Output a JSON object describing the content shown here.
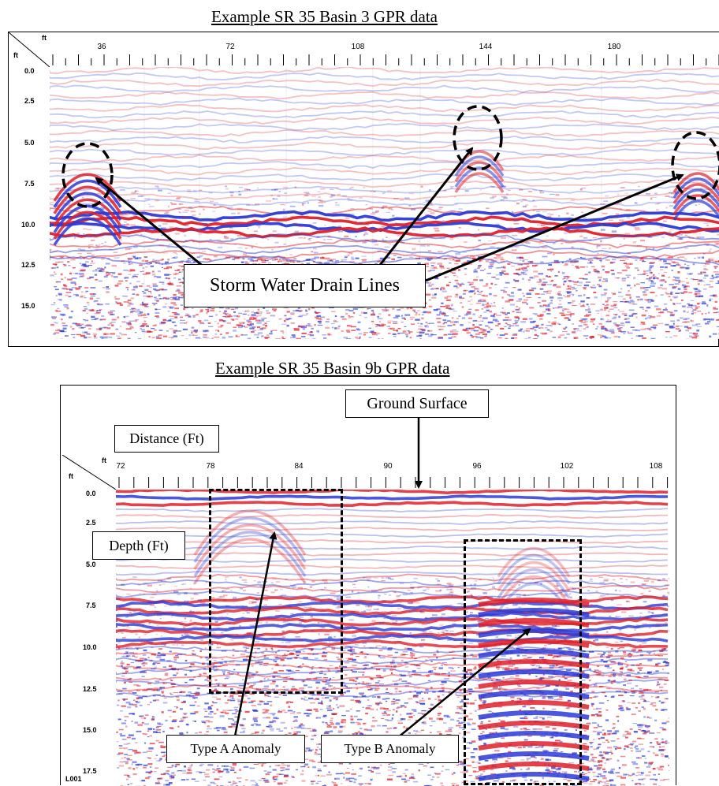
{
  "figure1": {
    "title": "Example SR 35 Basin 3 GPR data",
    "distance_unit": "ft",
    "depth_unit": "ft",
    "distance_ticks": [
      "36",
      "72",
      "108",
      "144",
      "180"
    ],
    "depth_ticks": [
      "0.0",
      "2.5",
      "5.0",
      "7.5",
      "10.0",
      "12.5",
      "15.0"
    ],
    "callout": "Storm Water Drain Lines"
  },
  "figure2": {
    "title": "Example SR 35 Basin 9b GPR data",
    "distance_unit": "ft",
    "depth_unit": "ft",
    "distance_ticks": [
      "72",
      "78",
      "84",
      "90",
      "96",
      "102",
      "108"
    ],
    "depth_ticks": [
      "0.0",
      "2.5",
      "5.0",
      "7.5",
      "10.0",
      "12.5",
      "15.0",
      "17.5"
    ],
    "labels": {
      "ground_surface": "Ground Surface",
      "distance": "Distance (Ft)",
      "depth": "Depth (Ft)",
      "type_a": "Type A Anomaly",
      "type_b": "Type B Anomaly"
    },
    "file_label": "L001"
  },
  "colors": {
    "positive_reflection": "#e0202a",
    "negative_reflection": "#2a3ad8",
    "background": "#ffffff"
  }
}
